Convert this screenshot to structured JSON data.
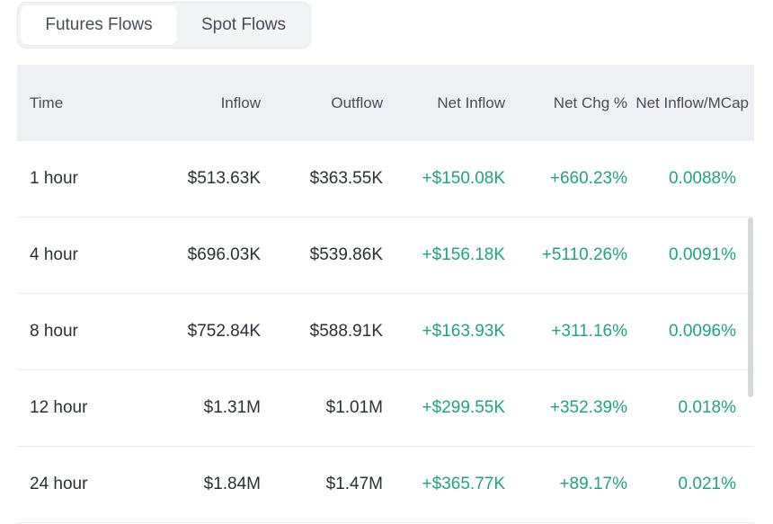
{
  "tabs": [
    {
      "label": "Futures Flows",
      "active": true
    },
    {
      "label": "Spot Flows",
      "active": false
    }
  ],
  "table": {
    "headers": [
      "Time",
      "Inflow",
      "Outflow",
      "Net Inflow",
      "Net Chg %",
      "Net Inflow/MCap"
    ],
    "rows": [
      [
        "1 hour",
        "$513.63K",
        "$363.55K",
        "+$150.08K",
        "+660.23%",
        "0.0088%"
      ],
      [
        "4 hour",
        "$696.03K",
        "$539.86K",
        "+$156.18K",
        "+5110.26%",
        "0.0091%"
      ],
      [
        "8 hour",
        "$752.84K",
        "$588.91K",
        "+$163.93K",
        "+311.16%",
        "0.0096%"
      ],
      [
        "12 hour",
        "$1.31M",
        "$1.01M",
        "+$299.55K",
        "+352.39%",
        "0.018%"
      ],
      [
        "24 hour",
        "$1.84M",
        "$1.47M",
        "+$365.77K",
        "+89.17%",
        "0.021%"
      ]
    ]
  },
  "colors": {
    "positive": "#1fa383",
    "header_bg": "#eef0f3",
    "text": "#2b2f36"
  }
}
